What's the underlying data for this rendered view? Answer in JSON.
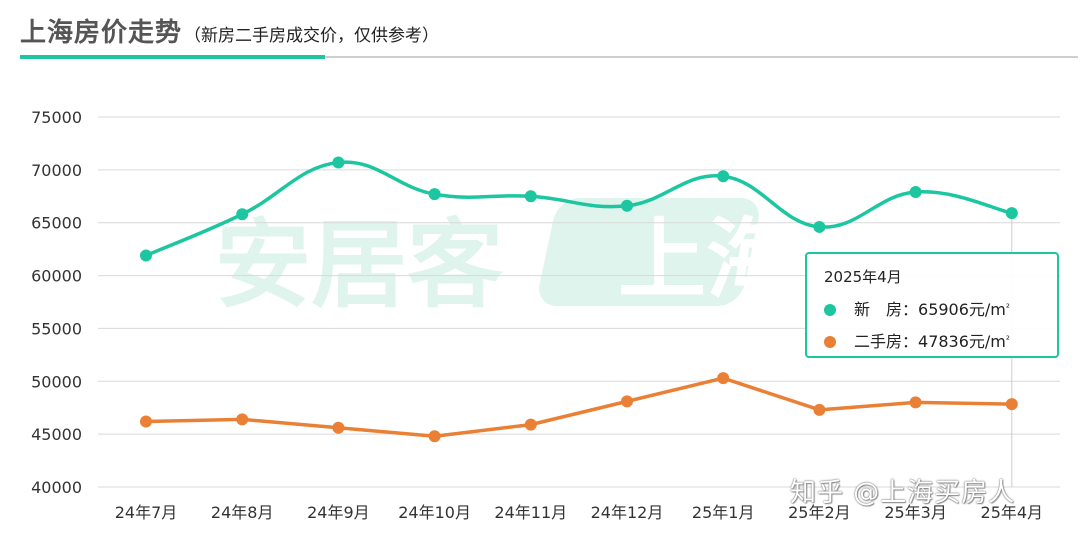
{
  "header": {
    "title": "上海房价走势",
    "subtitle": "（新房二手房成交价，仅供参考）"
  },
  "colors": {
    "new_house": "#1cc6a0",
    "second_hand": "#e98035",
    "accent": "#1cc6a0",
    "grid": "#d9d9d9"
  },
  "chart_data": {
    "type": "line",
    "title": "上海房价走势",
    "subtitle": "（新房二手房成交价，仅供参考）",
    "categories": [
      "24年7月",
      "24年8月",
      "24年9月",
      "24年10月",
      "24年11月",
      "24年12月",
      "25年1月",
      "25年2月",
      "25年3月",
      "25年4月"
    ],
    "ylim": [
      40000,
      75000
    ],
    "yticks": [
      40000,
      45000,
      50000,
      55000,
      60000,
      65000,
      70000,
      75000
    ],
    "grid": true,
    "series": [
      {
        "name": "新　房",
        "values": [
          61900,
          65800,
          70700,
          67700,
          67500,
          66600,
          69400,
          64600,
          67900,
          65906
        ],
        "smooth": true
      },
      {
        "name": "二手房",
        "values": [
          46200,
          46400,
          45600,
          44800,
          45900,
          48100,
          50300,
          47300,
          48000,
          47836
        ],
        "smooth": false
      }
    ]
  },
  "tooltip": {
    "title": "2025年4月",
    "rows": [
      {
        "label": "新　房：",
        "value": "65906元/m",
        "sup": "²"
      },
      {
        "label": "二手房：",
        "value": "47836元/m",
        "sup": "²"
      }
    ]
  },
  "watermarks": {
    "brand": "安居客",
    "logo_text": "上海",
    "author": "知乎 @上海买房人"
  }
}
